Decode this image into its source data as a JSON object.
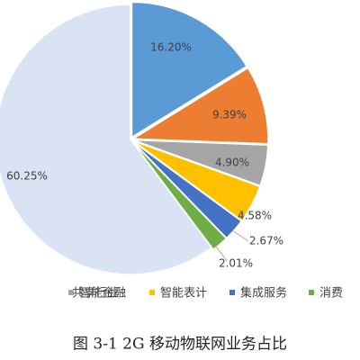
{
  "chart_data": {
    "type": "pie",
    "title": "图 3-1 2G 移动物联网业务占比",
    "categories": [
      null,
      "共享行业",
      "智能金融",
      "智能表计",
      "集成服务",
      "消费",
      null
    ],
    "values": [
      16.2,
      9.39,
      4.9,
      4.58,
      2.67,
      2.01,
      60.25
    ],
    "value_labels": [
      "16.20%",
      "9.39%",
      "4.90%",
      "4.58%",
      "2.67%",
      "2.01%",
      "60.25%"
    ],
    "colors": [
      "#5b9bd5",
      "#ed7d31",
      "#a5a5a5",
      "#ffc000",
      "#4472c4",
      "#70ad47",
      "#dae3f3"
    ]
  }
}
